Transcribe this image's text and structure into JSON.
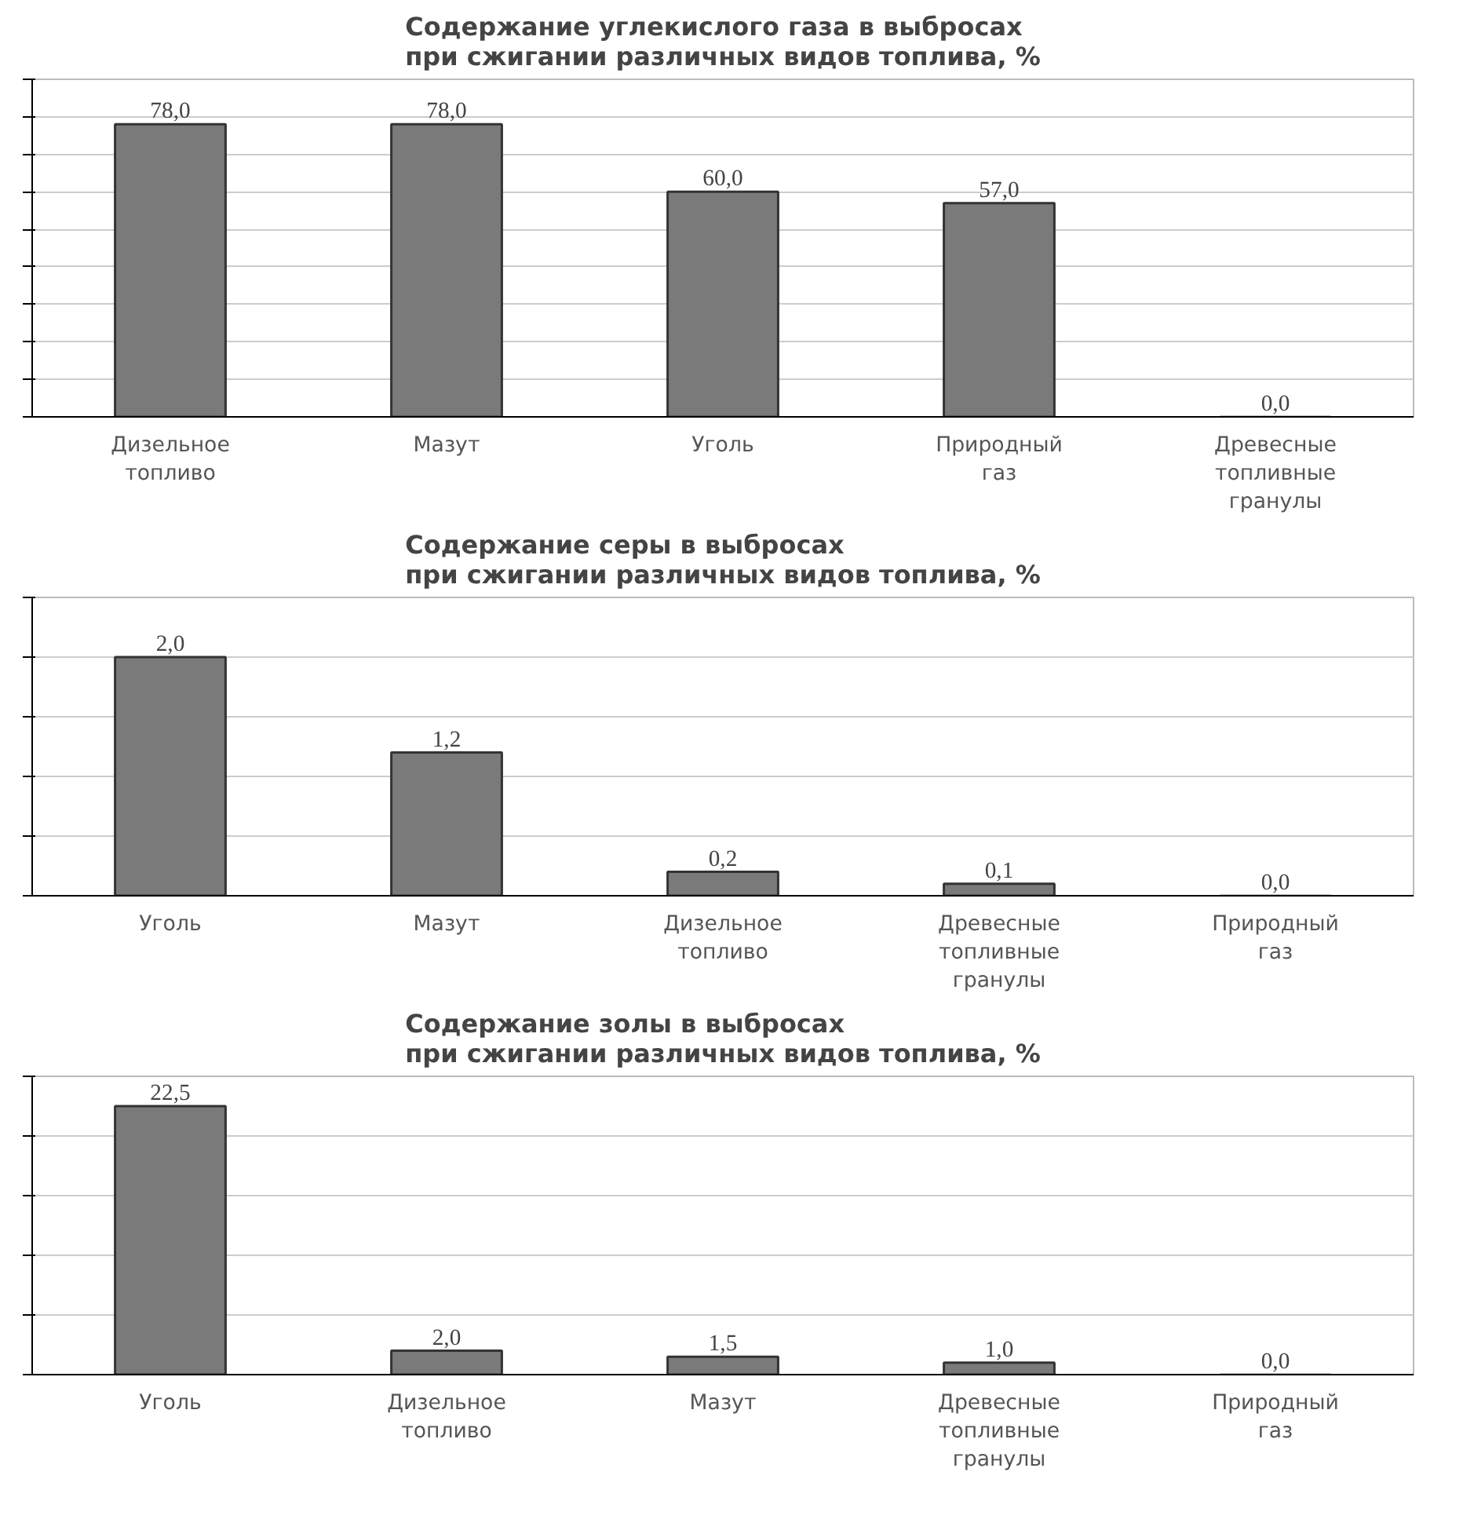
{
  "chart_data": [
    {
      "type": "bar",
      "title": "Содержание углекислого газа в выбросах\nпри сжигании различных видов топлива, %",
      "categories": [
        "Дизельное топливо",
        "Мазут",
        "Уголь",
        "Природный газ",
        "Древесные топливные гранулы"
      ],
      "values": [
        78.0,
        78.0,
        60.0,
        57.0,
        0.0
      ],
      "value_labels": [
        "78,0",
        "78,0",
        "60,0",
        "57,0",
        "0,0"
      ],
      "color": "#7a7a7a",
      "ylim": [
        0,
        90
      ],
      "yticks": [
        {
          "value": 0,
          "label": null
        },
        {
          "value": 10,
          "label": null
        },
        {
          "value": 20,
          "label": null
        },
        {
          "value": 30,
          "label": null
        },
        {
          "value": 40,
          "label": null
        },
        {
          "value": 50,
          "label": null
        },
        {
          "value": 60,
          "label": null
        },
        {
          "value": 70,
          "label": null
        },
        {
          "value": 80,
          "label": null
        },
        {
          "value": 90,
          "label": null
        }
      ],
      "tick_labels": "x",
      "grid": "y"
    },
    {
      "type": "bar",
      "title": "Содержание серы в выбросах\nпри сжигании различных видов топлива, %",
      "categories": [
        "Уголь",
        "Мазут",
        "Дизельное топливо",
        "Древесные топливные гранулы",
        "Природный газ"
      ],
      "values": [
        2.0,
        1.2,
        0.2,
        0.1,
        0.0
      ],
      "value_labels": [
        "2,0",
        "1,2",
        "0,2",
        "0,1",
        "0,0"
      ],
      "color": "#7a7a7a",
      "ylim": [
        0,
        2.5
      ],
      "yticks": [
        {
          "value": 0,
          "label": null
        },
        {
          "value": 0.5,
          "label": null
        },
        {
          "value": 1.0,
          "label": null
        },
        {
          "value": 1.5,
          "label": null
        },
        {
          "value": 2.0,
          "label": null
        },
        {
          "value": 2.5,
          "label": null
        }
      ],
      "tick_labels": "x",
      "grid": "y"
    },
    {
      "type": "bar",
      "title": "Содержание золы в выбросах\nпри сжигании различных видов топлива, %",
      "categories": [
        "Уголь",
        "Дизельное топливо",
        "Мазут",
        "Древесные топливные гранулы",
        "Природный газ"
      ],
      "values": [
        22.5,
        2.0,
        1.5,
        1.0,
        0.0
      ],
      "value_labels": [
        "22,5",
        "2,0",
        "1,5",
        "1,0",
        "0,0"
      ],
      "color": "#7a7a7a",
      "ylim": [
        0,
        25
      ],
      "yticks": [
        {
          "value": 0,
          "label": null
        },
        {
          "value": 5,
          "label": null
        },
        {
          "value": 10,
          "label": null
        },
        {
          "value": 15,
          "label": null
        },
        {
          "value": 20,
          "label": null
        },
        {
          "value": 25,
          "label": null
        }
      ],
      "tick_labels": "x",
      "grid": "y"
    }
  ]
}
